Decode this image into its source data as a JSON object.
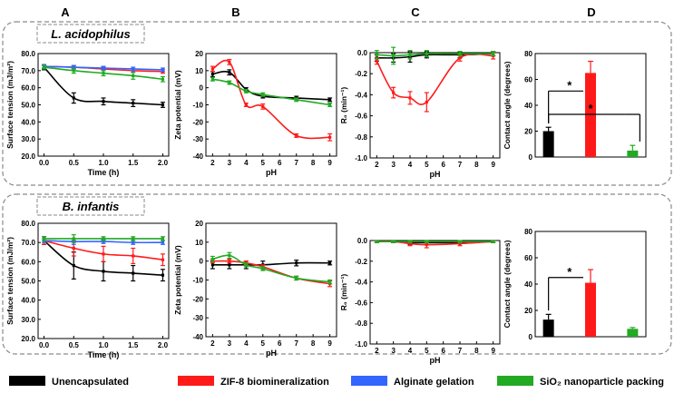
{
  "figure": {
    "column_labels": [
      "A",
      "B",
      "C",
      "D"
    ],
    "row_labels": [
      "L. acidophilus",
      "B. infantis"
    ],
    "legend": [
      {
        "label": "Unencapsulated",
        "color": "#000000"
      },
      {
        "label": "ZIF-8 biomineralization",
        "color": "#ff1a1a"
      },
      {
        "label": "Alginate gelation",
        "color": "#3366ff"
      },
      {
        "label": "SiO₂ nanoparticle packing",
        "color": "#22aa22"
      }
    ]
  },
  "chart_data": [
    {
      "id": "A1",
      "type": "line",
      "title": "",
      "xlabel": "Time (h)",
      "ylabel": "Surface tension (mJ/m²)",
      "xlim": [
        -0.1,
        2.1
      ],
      "ylim": [
        20,
        80
      ],
      "xticks": [
        0.0,
        0.5,
        1.0,
        1.5,
        2.0
      ],
      "yticks": [
        20,
        30,
        40,
        50,
        60,
        70,
        80
      ],
      "x": [
        0.0,
        0.5,
        1.0,
        1.5,
        2.0
      ],
      "series": [
        {
          "name": "Unencapsulated",
          "color": "#000000",
          "values": [
            72,
            54,
            52,
            51,
            50
          ],
          "errors": [
            1.5,
            3,
            2,
            2,
            1.5
          ]
        },
        {
          "name": "ZIF-8 biomineralization",
          "color": "#ff1a1a",
          "values": [
            72.5,
            72,
            71,
            70,
            69.5
          ],
          "errors": [
            1,
            1,
            1,
            1,
            1
          ]
        },
        {
          "name": "Alginate gelation",
          "color": "#3366ff",
          "values": [
            72.5,
            72,
            71.5,
            71,
            70.5
          ],
          "errors": [
            1,
            1,
            1,
            1,
            1
          ]
        },
        {
          "name": "SiO₂ nanoparticle packing",
          "color": "#22aa22",
          "values": [
            72,
            70,
            68.5,
            67,
            65
          ],
          "errors": [
            1,
            1.5,
            1.5,
            2,
            1.5
          ]
        }
      ]
    },
    {
      "id": "B1",
      "type": "line",
      "title": "",
      "xlabel": "pH",
      "ylabel": "Zeta potential (mV)",
      "xlim": [
        1.6,
        9.4
      ],
      "ylim": [
        -40,
        20
      ],
      "xticks": [
        2,
        3,
        4,
        5,
        6,
        7,
        8,
        9
      ],
      "yticks": [
        20,
        10,
        0,
        -10,
        -20,
        -30,
        -40
      ],
      "x": [
        2,
        3,
        4,
        5,
        7,
        9
      ],
      "series": [
        {
          "name": "Unencapsulated",
          "color": "#000000",
          "values": [
            8,
            9,
            -1,
            -5,
            -6,
            -7
          ],
          "errors": [
            1.5,
            1.5,
            1,
            1,
            1,
            1
          ]
        },
        {
          "name": "ZIF-8 biomineralization",
          "color": "#ff1a1a",
          "values": [
            11,
            15,
            -10,
            -11,
            -28,
            -29
          ],
          "errors": [
            1.5,
            1.5,
            1,
            1.5,
            1,
            2
          ]
        },
        {
          "name": "SiO₂ nanoparticle packing",
          "color": "#22aa22",
          "values": [
            5,
            3,
            -2,
            -4,
            -7,
            -10
          ],
          "errors": [
            1,
            1,
            1,
            1,
            1,
            1
          ]
        }
      ]
    },
    {
      "id": "C1",
      "type": "line",
      "title": "",
      "xlabel": "pH",
      "ylabel": "R₀ (min⁻¹)",
      "xlim": [
        1.6,
        9.4
      ],
      "ylim": [
        -1.0,
        0.0
      ],
      "xticks": [
        2,
        3,
        4,
        5,
        6,
        7,
        8,
        9
      ],
      "yticks": [
        0.0,
        -0.2,
        -0.4,
        -0.6,
        -0.8,
        -1.0
      ],
      "x": [
        2,
        3,
        4,
        5,
        7,
        9
      ],
      "series": [
        {
          "name": "Unencapsulated",
          "color": "#000000",
          "values": [
            -0.05,
            -0.05,
            -0.04,
            -0.02,
            -0.02,
            -0.01
          ],
          "errors": [
            0.03,
            0.04,
            0.05,
            0.03,
            0.03,
            0.02
          ]
        },
        {
          "name": "ZIF-8 biomineralization",
          "color": "#ff1a1a",
          "values": [
            -0.08,
            -0.38,
            -0.43,
            -0.47,
            -0.05,
            -0.03
          ],
          "errors": [
            0.03,
            0.05,
            0.06,
            0.09,
            0.03,
            0.03
          ]
        },
        {
          "name": "SiO₂ nanoparticle packing",
          "color": "#22aa22",
          "values": [
            -0.02,
            -0.03,
            -0.02,
            -0.01,
            -0.01,
            -0.01
          ],
          "errors": [
            0.04,
            0.08,
            0.04,
            0.03,
            0.02,
            0.02
          ]
        }
      ]
    },
    {
      "id": "D1",
      "type": "bar",
      "title": "",
      "xlabel": "",
      "ylabel": "Contact angle (degrees)",
      "ylim": [
        0,
        80
      ],
      "yticks": [
        0,
        20,
        40,
        60,
        80
      ],
      "categories": [
        "Unencapsulated",
        "ZIF-8 biomineralization",
        "SiO₂ nanoparticle packing"
      ],
      "colors": [
        "#000000",
        "#ff1a1a",
        "#22aa22"
      ],
      "values": [
        20,
        65,
        5
      ],
      "errors": [
        3,
        9,
        4
      ],
      "annotations": [
        {
          "label": "*",
          "from": 0,
          "to": 1
        },
        {
          "label": "*",
          "from": 0,
          "to": 2
        }
      ]
    },
    {
      "id": "A2",
      "type": "line",
      "title": "",
      "xlabel": "Time (h)",
      "ylabel": "Surface tension (mJ/m²)",
      "xlim": [
        -0.1,
        2.1
      ],
      "ylim": [
        20,
        80
      ],
      "xticks": [
        0.0,
        0.5,
        1.0,
        1.5,
        2.0
      ],
      "yticks": [
        20,
        30,
        40,
        50,
        60,
        70,
        80
      ],
      "x": [
        0.0,
        0.5,
        1.0,
        1.5,
        2.0
      ],
      "series": [
        {
          "name": "Unencapsulated",
          "color": "#000000",
          "values": [
            71,
            58,
            55,
            54,
            53
          ],
          "errors": [
            2,
            7,
            5,
            4,
            3
          ]
        },
        {
          "name": "ZIF-8 biomineralization",
          "color": "#ff1a1a",
          "values": [
            71,
            67,
            64,
            63,
            61
          ],
          "errors": [
            2,
            4,
            4,
            4,
            3
          ]
        },
        {
          "name": "Alginate gelation",
          "color": "#3366ff",
          "values": [
            71,
            70.5,
            70.5,
            70,
            70
          ],
          "errors": [
            1,
            1.5,
            1,
            1,
            1
          ]
        },
        {
          "name": "SiO₂ nanoparticle packing",
          "color": "#22aa22",
          "values": [
            72,
            72,
            72,
            72,
            72
          ],
          "errors": [
            1,
            2,
            1,
            1,
            1
          ]
        }
      ]
    },
    {
      "id": "B2",
      "type": "line",
      "title": "",
      "xlabel": "pH",
      "ylabel": "Zeta potential (mV)",
      "xlim": [
        1.6,
        9.4
      ],
      "ylim": [
        -40,
        20
      ],
      "xticks": [
        2,
        3,
        4,
        5,
        6,
        7,
        8,
        9
      ],
      "yticks": [
        20,
        10,
        0,
        -10,
        -20,
        -30,
        -40
      ],
      "x": [
        2,
        3,
        4,
        5,
        7,
        9
      ],
      "series": [
        {
          "name": "Unencapsulated",
          "color": "#000000",
          "values": [
            -2,
            -2,
            -2,
            -2,
            -1,
            -1
          ],
          "errors": [
            2,
            2,
            2,
            2,
            1.5,
            1
          ]
        },
        {
          "name": "ZIF-8 biomineralization",
          "color": "#ff1a1a",
          "values": [
            0,
            0,
            -1,
            -3,
            -9,
            -12
          ],
          "errors": [
            1,
            1,
            1,
            1,
            1,
            1.5
          ]
        },
        {
          "name": "SiO₂ nanoparticle packing",
          "color": "#22aa22",
          "values": [
            1,
            3,
            -2,
            -4,
            -9,
            -11
          ],
          "errors": [
            1.5,
            1.5,
            1,
            1,
            1,
            1
          ]
        }
      ]
    },
    {
      "id": "C2",
      "type": "line",
      "title": "",
      "xlabel": "pH",
      "ylabel": "R₀ (min⁻¹)",
      "xlim": [
        1.6,
        9.4
      ],
      "ylim": [
        -1.0,
        0.0
      ],
      "xticks": [
        2,
        3,
        4,
        5,
        6,
        7,
        8,
        9
      ],
      "yticks": [
        0.0,
        -0.2,
        -0.4,
        -0.6,
        -0.8,
        -1.0
      ],
      "x": [
        2,
        3,
        4,
        5,
        7,
        9
      ],
      "series": [
        {
          "name": "Unencapsulated",
          "color": "#000000",
          "values": [
            -0.01,
            -0.01,
            -0.02,
            -0.02,
            -0.02,
            -0.01
          ],
          "errors": [
            0.01,
            0.01,
            0.02,
            0.02,
            0.01,
            0.01
          ]
        },
        {
          "name": "ZIF-8 biomineralization",
          "color": "#ff1a1a",
          "values": [
            -0.01,
            -0.01,
            -0.03,
            -0.04,
            -0.03,
            -0.01
          ],
          "errors": [
            0.01,
            0.01,
            0.02,
            0.03,
            0.02,
            0.01
          ]
        },
        {
          "name": "SiO₂ nanoparticle packing",
          "color": "#22aa22",
          "values": [
            -0.01,
            -0.01,
            -0.01,
            -0.01,
            -0.01,
            -0.01
          ],
          "errors": [
            0.01,
            0.01,
            0.01,
            0.01,
            0.01,
            0.01
          ]
        }
      ]
    },
    {
      "id": "D2",
      "type": "bar",
      "title": "",
      "xlabel": "",
      "ylabel": "Contact angle (degrees)",
      "ylim": [
        0,
        80
      ],
      "yticks": [
        0,
        20,
        40,
        60,
        80
      ],
      "categories": [
        "Unencapsulated",
        "ZIF-8 biomineralization",
        "SiO₂ nanoparticle packing"
      ],
      "colors": [
        "#000000",
        "#ff1a1a",
        "#22aa22"
      ],
      "values": [
        13,
        41,
        6
      ],
      "errors": [
        4,
        10,
        1
      ],
      "annotations": [
        {
          "label": "*",
          "from": 0,
          "to": 1
        }
      ]
    }
  ]
}
